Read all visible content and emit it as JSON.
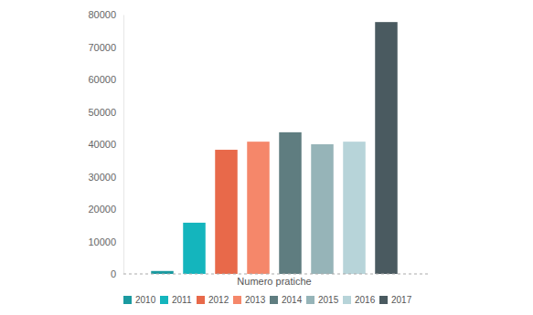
{
  "chart_data": {
    "type": "bar",
    "categories": [
      "Numero pratiche"
    ],
    "series": [
      {
        "name": "2010",
        "color": "#1b9aa0",
        "values": [
          900
        ]
      },
      {
        "name": "2011",
        "color": "#14b5bd",
        "values": [
          15800
        ]
      },
      {
        "name": "2012",
        "color": "#e8694a",
        "values": [
          38300
        ]
      },
      {
        "name": "2013",
        "color": "#f5876a",
        "values": [
          40800
        ]
      },
      {
        "name": "2014",
        "color": "#5f7d80",
        "values": [
          43700
        ]
      },
      {
        "name": "2015",
        "color": "#96b4b8",
        "values": [
          40000
        ]
      },
      {
        "name": "2016",
        "color": "#b7d4d9",
        "values": [
          40800
        ]
      },
      {
        "name": "2017",
        "color": "#4a5a60",
        "values": [
          77700
        ]
      }
    ],
    "ylim": [
      0,
      80000
    ],
    "yticks": [
      0,
      10000,
      20000,
      30000,
      40000,
      50000,
      60000,
      70000,
      80000
    ],
    "grid": false,
    "legend": "bottom"
  }
}
